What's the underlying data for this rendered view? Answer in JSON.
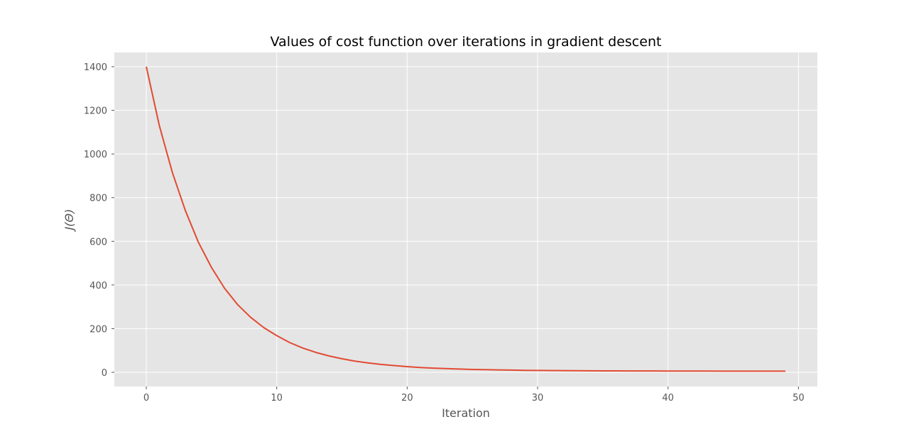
{
  "chart_data": {
    "type": "line",
    "title": "Values of cost function over iterations in gradient descent",
    "xlabel": "Iteration",
    "ylabel": "J(Θ)",
    "xlim": [
      -2.45,
      51.45
    ],
    "ylim": [
      -65,
      1465
    ],
    "xticks": [
      0,
      10,
      20,
      30,
      40,
      50
    ],
    "yticks": [
      0,
      200,
      400,
      600,
      800,
      1000,
      1200,
      1400
    ],
    "grid": true,
    "style": "ggplot",
    "colors": {
      "background": "#e5e5e5",
      "grid": "#ffffff",
      "line": "#e24a33",
      "tick": "#555555"
    },
    "series": [
      {
        "x": [
          0,
          1,
          2,
          3,
          4,
          5,
          6,
          7,
          8,
          9,
          10,
          11,
          12,
          13,
          14,
          15,
          16,
          17,
          18,
          19,
          20,
          21,
          22,
          23,
          24,
          25,
          26,
          27,
          28,
          29,
          30,
          31,
          32,
          33,
          34,
          35,
          36,
          37,
          38,
          39,
          40,
          41,
          42,
          43,
          44,
          45,
          46,
          47,
          48,
          49
        ],
        "values": [
          1400,
          1130,
          915,
          740,
          595,
          480,
          385,
          310,
          252,
          205,
          168,
          136,
          111,
          91,
          75,
          62,
          51,
          43,
          36,
          31,
          26,
          22,
          19,
          17,
          15,
          13,
          12,
          11,
          10,
          9,
          8.5,
          8,
          7.6,
          7.2,
          6.9,
          6.6,
          6.4,
          6.2,
          6.0,
          5.9,
          5.8,
          5.7,
          5.6,
          5.5,
          5.4,
          5.4,
          5.3,
          5.3,
          5.2,
          5.2
        ]
      }
    ]
  }
}
